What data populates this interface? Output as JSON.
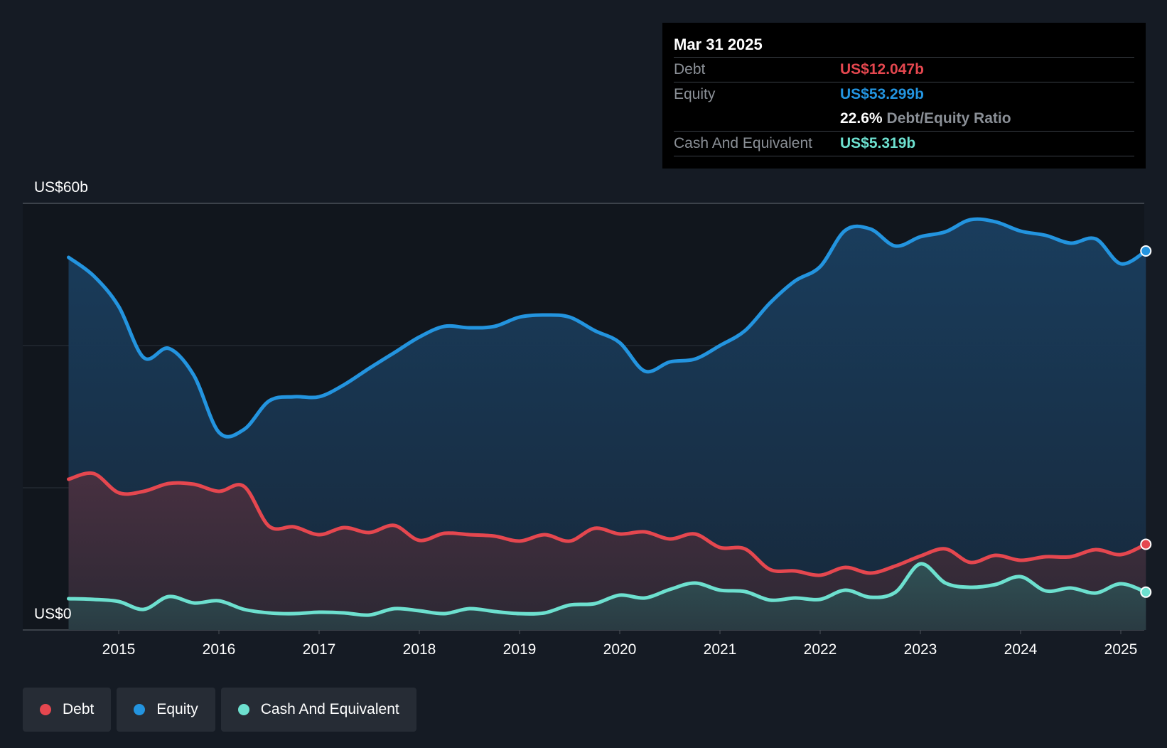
{
  "tooltip": {
    "date": "Mar 31 2025",
    "debt_label": "Debt",
    "debt_value": "US$12.047b",
    "equity_label": "Equity",
    "equity_value": "US$53.299b",
    "ratio_value": "22.6%",
    "ratio_label": "Debt/Equity Ratio",
    "cash_label": "Cash And Equivalent",
    "cash_value": "US$5.319b"
  },
  "legend": {
    "debt": "Debt",
    "equity": "Equity",
    "cash": "Cash And Equivalent"
  },
  "colors": {
    "debt": "#e5474f",
    "equity": "#2394df",
    "cash": "#6de0cf",
    "background": "#151b24",
    "tooltip_bg": "#000000"
  },
  "chart_data": {
    "type": "area",
    "title": "",
    "xlabel": "",
    "ylabel": "",
    "ylim": [
      0,
      60
    ],
    "y_tick_labels": [
      "US$0",
      "US$60b"
    ],
    "y_gridlines": [
      0,
      20,
      40,
      60
    ],
    "x_ticks": [
      2015,
      2016,
      2017,
      2018,
      2019,
      2020,
      2021,
      2022,
      2023,
      2024,
      2025
    ],
    "x_range": [
      2014.5,
      2025.25
    ],
    "series": [
      {
        "name": "Equity",
        "color": "#2394df",
        "points": [
          [
            2014.5,
            52.4
          ],
          [
            2014.75,
            49.8
          ],
          [
            2015.0,
            45.5
          ],
          [
            2015.25,
            38.3
          ],
          [
            2015.5,
            39.6
          ],
          [
            2015.75,
            35.8
          ],
          [
            2016.0,
            27.8
          ],
          [
            2016.25,
            28.2
          ],
          [
            2016.5,
            32.2
          ],
          [
            2016.75,
            32.8
          ],
          [
            2017.0,
            32.8
          ],
          [
            2017.25,
            34.5
          ],
          [
            2017.5,
            36.8
          ],
          [
            2017.75,
            39.0
          ],
          [
            2018.0,
            41.2
          ],
          [
            2018.25,
            42.7
          ],
          [
            2018.5,
            42.5
          ],
          [
            2018.75,
            42.7
          ],
          [
            2019.0,
            44.0
          ],
          [
            2019.25,
            44.3
          ],
          [
            2019.5,
            44.0
          ],
          [
            2019.75,
            42.1
          ],
          [
            2020.0,
            40.4
          ],
          [
            2020.25,
            36.4
          ],
          [
            2020.5,
            37.7
          ],
          [
            2020.75,
            38.1
          ],
          [
            2021.0,
            40.0
          ],
          [
            2021.25,
            42.1
          ],
          [
            2021.5,
            46.0
          ],
          [
            2021.75,
            49.1
          ],
          [
            2022.0,
            51.1
          ],
          [
            2022.25,
            56.2
          ],
          [
            2022.5,
            56.4
          ],
          [
            2022.75,
            54.0
          ],
          [
            2023.0,
            55.3
          ],
          [
            2023.25,
            56.0
          ],
          [
            2023.5,
            57.7
          ],
          [
            2023.75,
            57.4
          ],
          [
            2024.0,
            56.1
          ],
          [
            2024.25,
            55.5
          ],
          [
            2024.5,
            54.4
          ],
          [
            2024.75,
            55.0
          ],
          [
            2025.0,
            51.5
          ],
          [
            2025.25,
            53.299
          ]
        ]
      },
      {
        "name": "Debt",
        "color": "#e5474f",
        "points": [
          [
            2014.5,
            21.2
          ],
          [
            2014.75,
            22.0
          ],
          [
            2015.0,
            19.3
          ],
          [
            2015.25,
            19.5
          ],
          [
            2015.5,
            20.6
          ],
          [
            2015.75,
            20.5
          ],
          [
            2016.0,
            19.5
          ],
          [
            2016.25,
            20.2
          ],
          [
            2016.5,
            14.6
          ],
          [
            2016.75,
            14.5
          ],
          [
            2017.0,
            13.4
          ],
          [
            2017.25,
            14.4
          ],
          [
            2017.5,
            13.7
          ],
          [
            2017.75,
            14.7
          ],
          [
            2018.0,
            12.6
          ],
          [
            2018.25,
            13.6
          ],
          [
            2018.5,
            13.4
          ],
          [
            2018.75,
            13.2
          ],
          [
            2019.0,
            12.5
          ],
          [
            2019.25,
            13.4
          ],
          [
            2019.5,
            12.5
          ],
          [
            2019.75,
            14.3
          ],
          [
            2020.0,
            13.5
          ],
          [
            2020.25,
            13.8
          ],
          [
            2020.5,
            12.8
          ],
          [
            2020.75,
            13.5
          ],
          [
            2021.0,
            11.6
          ],
          [
            2021.25,
            11.4
          ],
          [
            2021.5,
            8.5
          ],
          [
            2021.75,
            8.3
          ],
          [
            2022.0,
            7.7
          ],
          [
            2022.25,
            8.8
          ],
          [
            2022.5,
            8.0
          ],
          [
            2022.75,
            9.0
          ],
          [
            2023.0,
            10.4
          ],
          [
            2023.25,
            11.4
          ],
          [
            2023.5,
            9.5
          ],
          [
            2023.75,
            10.5
          ],
          [
            2024.0,
            9.8
          ],
          [
            2024.25,
            10.3
          ],
          [
            2024.5,
            10.3
          ],
          [
            2024.75,
            11.3
          ],
          [
            2025.0,
            10.6
          ],
          [
            2025.25,
            12.047
          ]
        ]
      },
      {
        "name": "Cash And Equivalent",
        "color": "#6de0cf",
        "points": [
          [
            2014.5,
            4.4
          ],
          [
            2014.75,
            4.3
          ],
          [
            2015.0,
            4.0
          ],
          [
            2015.25,
            2.9
          ],
          [
            2015.5,
            4.7
          ],
          [
            2015.75,
            3.8
          ],
          [
            2016.0,
            4.1
          ],
          [
            2016.25,
            2.9
          ],
          [
            2016.5,
            2.4
          ],
          [
            2016.75,
            2.3
          ],
          [
            2017.0,
            2.5
          ],
          [
            2017.25,
            2.4
          ],
          [
            2017.5,
            2.1
          ],
          [
            2017.75,
            3.0
          ],
          [
            2018.0,
            2.7
          ],
          [
            2018.25,
            2.3
          ],
          [
            2018.5,
            3.0
          ],
          [
            2018.75,
            2.6
          ],
          [
            2019.0,
            2.3
          ],
          [
            2019.25,
            2.4
          ],
          [
            2019.5,
            3.5
          ],
          [
            2019.75,
            3.7
          ],
          [
            2020.0,
            4.9
          ],
          [
            2020.25,
            4.5
          ],
          [
            2020.5,
            5.7
          ],
          [
            2020.75,
            6.6
          ],
          [
            2021.0,
            5.6
          ],
          [
            2021.25,
            5.4
          ],
          [
            2021.5,
            4.2
          ],
          [
            2021.75,
            4.5
          ],
          [
            2022.0,
            4.3
          ],
          [
            2022.25,
            5.6
          ],
          [
            2022.5,
            4.6
          ],
          [
            2022.75,
            5.3
          ],
          [
            2023.0,
            9.3
          ],
          [
            2023.25,
            6.6
          ],
          [
            2023.5,
            6.0
          ],
          [
            2023.75,
            6.4
          ],
          [
            2024.0,
            7.5
          ],
          [
            2024.25,
            5.5
          ],
          [
            2024.5,
            5.9
          ],
          [
            2024.75,
            5.2
          ],
          [
            2025.0,
            6.5
          ],
          [
            2025.25,
            5.319
          ]
        ]
      }
    ],
    "legend_position": "bottom-left"
  }
}
